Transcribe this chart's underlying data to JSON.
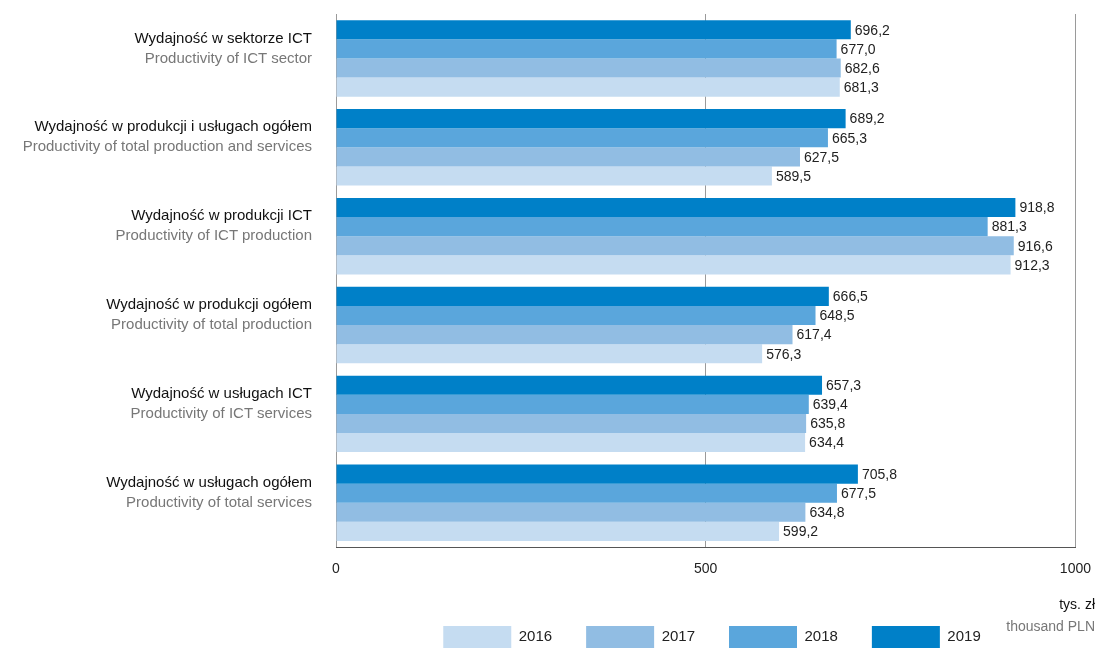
{
  "chart_data": {
    "type": "bar",
    "orientation": "horizontal",
    "categories": [
      "Wydajność w sektorze ICT\nProductivity of ICT sector",
      "Wydajność w produkcji i usługach ogółem\nProductivity of total production and services",
      "Wydajność w produkcji ICT\nProductivity of ICT production",
      "Wydajność w produkcji ogółem\nProductivity of total production",
      "Wydajność w usługach ICT\nProductivity of ICT services",
      "Wydajność w usługach ogółem\nProductivity of total services"
    ],
    "series": [
      {
        "name": "2016",
        "color": "#c5dcf1",
        "values": [
          681.3,
          589.5,
          912.3,
          576.3,
          634.4,
          599.2
        ],
        "value_labels": [
          "681,3",
          "589,5",
          "912,3",
          "576,3",
          "634,4",
          "599,2"
        ]
      },
      {
        "name": "2017",
        "color": "#91bde3",
        "values": [
          682.6,
          627.5,
          916.6,
          617.4,
          635.8,
          634.8
        ],
        "value_labels": [
          "682,6",
          "627,5",
          "916,6",
          "617,4",
          "635,8",
          "634,8"
        ]
      },
      {
        "name": "2018",
        "color": "#5aa6dc",
        "values": [
          677.0,
          665.3,
          881.3,
          648.5,
          639.4,
          677.5
        ],
        "value_labels": [
          "677,0",
          "665,3",
          "881,3",
          "648,5",
          "639,4",
          "677,5"
        ]
      },
      {
        "name": "2019",
        "color": "#0080c8",
        "values": [
          696.2,
          689.2,
          918.8,
          666.5,
          657.3,
          705.8
        ],
        "value_labels": [
          "696,2",
          "689,2",
          "918,8",
          "666,5",
          "657,3",
          "705,8"
        ]
      }
    ],
    "xlim": [
      0,
      1000
    ],
    "xticks": [
      0,
      500,
      1000
    ],
    "xlabel": "tys. zł\nthousand PLN",
    "grid": "x",
    "legend": "bottom"
  }
}
